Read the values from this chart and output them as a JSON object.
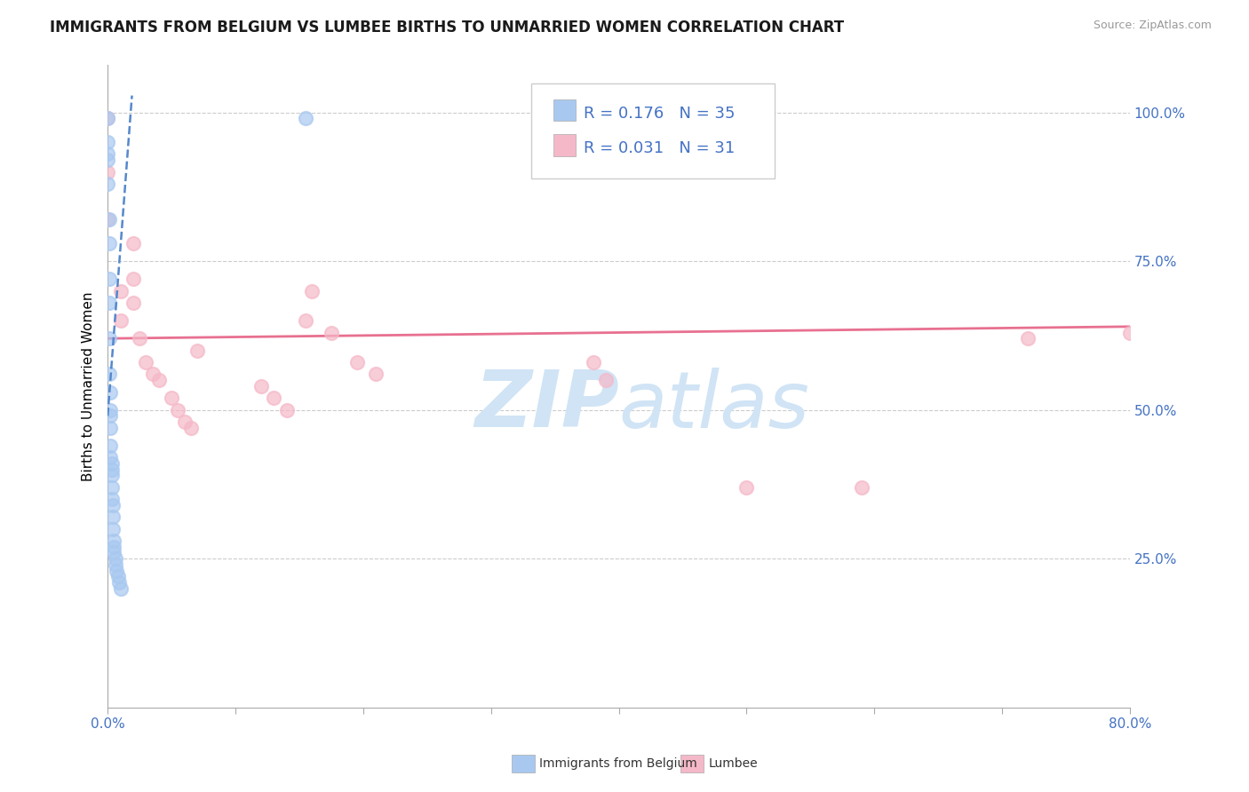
{
  "title": "IMMIGRANTS FROM BELGIUM VS LUMBEE BIRTHS TO UNMARRIED WOMEN CORRELATION CHART",
  "source": "Source: ZipAtlas.com",
  "ylabel": "Births to Unmarried Women",
  "yticks_right": [
    "25.0%",
    "50.0%",
    "75.0%",
    "100.0%"
  ],
  "yticks_right_vals": [
    0.25,
    0.5,
    0.75,
    1.0
  ],
  "r_blue": 0.176,
  "n_blue": 35,
  "r_pink": 0.031,
  "n_pink": 31,
  "legend_label_blue": "Immigrants from Belgium",
  "legend_label_pink": "Lumbee",
  "blue_color": "#A8C8F0",
  "pink_color": "#F5B8C8",
  "trend_blue_color": "#5588CC",
  "trend_pink_color": "#E87090",
  "watermark_text": "ZIPatlas",
  "watermark_color": "#D0E4F5",
  "background_color": "#FFFFFF",
  "blue_dots_x": [
    0.0,
    0.0,
    0.0,
    0.0,
    0.0,
    0.001,
    0.001,
    0.001,
    0.001,
    0.001,
    0.001,
    0.002,
    0.002,
    0.002,
    0.002,
    0.002,
    0.002,
    0.003,
    0.003,
    0.003,
    0.003,
    0.003,
    0.004,
    0.004,
    0.004,
    0.005,
    0.005,
    0.005,
    0.006,
    0.006,
    0.007,
    0.008,
    0.009,
    0.01,
    0.155
  ],
  "blue_dots_y": [
    0.99,
    0.95,
    0.93,
    0.92,
    0.88,
    0.82,
    0.78,
    0.72,
    0.68,
    0.62,
    0.56,
    0.53,
    0.5,
    0.49,
    0.47,
    0.44,
    0.42,
    0.41,
    0.4,
    0.39,
    0.37,
    0.35,
    0.34,
    0.32,
    0.3,
    0.28,
    0.27,
    0.26,
    0.25,
    0.24,
    0.23,
    0.22,
    0.21,
    0.2,
    0.99
  ],
  "pink_dots_x": [
    0.0,
    0.0,
    0.0,
    0.01,
    0.01,
    0.02,
    0.02,
    0.02,
    0.025,
    0.03,
    0.035,
    0.04,
    0.05,
    0.055,
    0.06,
    0.065,
    0.07,
    0.12,
    0.13,
    0.14,
    0.155,
    0.16,
    0.175,
    0.195,
    0.21,
    0.38,
    0.39,
    0.5,
    0.59,
    0.72,
    0.8
  ],
  "pink_dots_y": [
    0.99,
    0.9,
    0.82,
    0.7,
    0.65,
    0.78,
    0.72,
    0.68,
    0.62,
    0.58,
    0.56,
    0.55,
    0.52,
    0.5,
    0.48,
    0.47,
    0.6,
    0.54,
    0.52,
    0.5,
    0.65,
    0.7,
    0.63,
    0.58,
    0.56,
    0.58,
    0.55,
    0.37,
    0.37,
    0.62,
    0.63
  ],
  "xlim": [
    0.0,
    0.8
  ],
  "ylim": [
    0.0,
    1.08
  ],
  "blue_trend_x": [
    0.0,
    0.02
  ],
  "pink_trend_x": [
    0.0,
    0.8
  ]
}
